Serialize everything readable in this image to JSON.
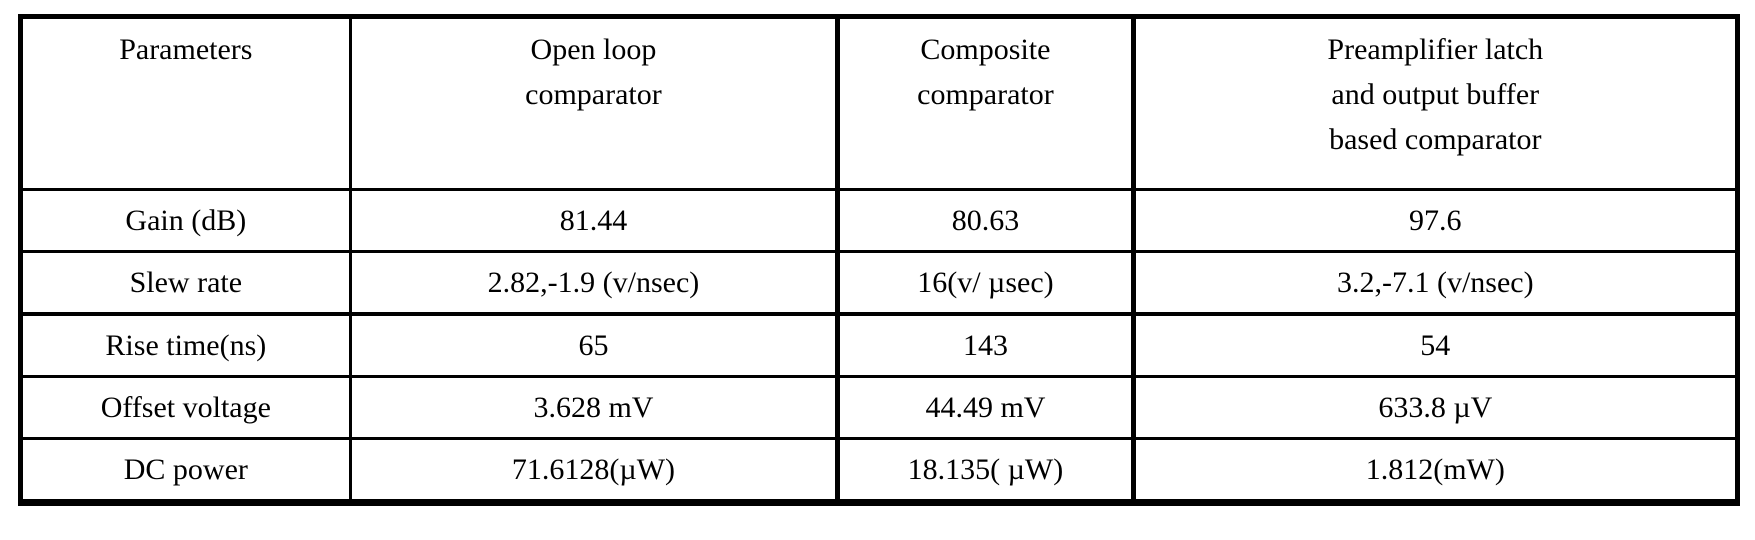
{
  "table": {
    "headers": [
      "Parameters",
      "Open loop\ncomparator",
      "Composite\ncomparator",
      "Preamplifier latch\nand output buffer\nbased comparator"
    ],
    "rows": [
      {
        "param": "Gain (dB)",
        "values": [
          "81.44",
          "80.63",
          "97.6"
        ]
      },
      {
        "param": "Slew rate",
        "values": [
          "2.82,-1.9 (v/nsec)",
          "16(v/ µsec)",
          "3.2,-7.1 (v/nsec)"
        ]
      },
      {
        "param": "Rise time(ns)",
        "values": [
          "65",
          "143",
          "54"
        ]
      },
      {
        "param": "Offset voltage",
        "values": [
          "3.628 mV",
          "44.49 mV",
          "633.8 µV"
        ]
      },
      {
        "param": "DC power",
        "values": [
          "71.6128(µW)",
          "18.135( µW)",
          "1.812(mW)"
        ]
      }
    ]
  }
}
